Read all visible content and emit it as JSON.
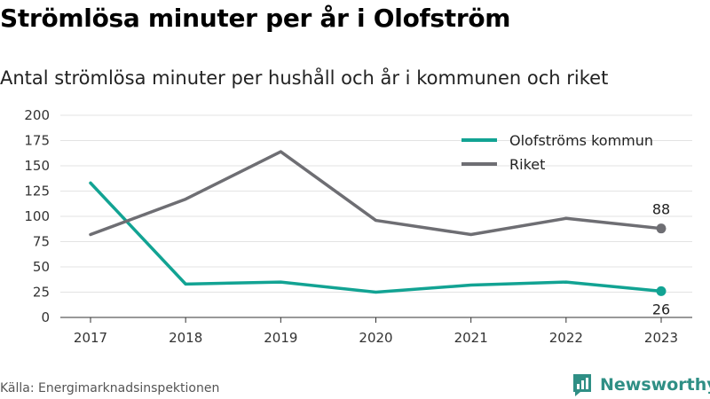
{
  "source": "Källa: Energimarknadsinspektionen",
  "brand": "Newsworthy",
  "colors": {
    "olofstrom": "#12a393",
    "riket": "#6e6e73",
    "brand": "#2f8f85"
  },
  "chart_data": {
    "type": "line",
    "title": "Strömlösa minuter per år i Olofström",
    "subtitle": "Antal strömlösa minuter per hushåll och år i kommunen och riket",
    "x": [
      "2017",
      "2018",
      "2019",
      "2020",
      "2021",
      "2022",
      "2023"
    ],
    "ylim": [
      0,
      200
    ],
    "yticks": [
      "0",
      "25",
      "50",
      "75",
      "100",
      "125",
      "150",
      "175",
      "200"
    ],
    "grid": true,
    "legend_position": "top-right",
    "series": [
      {
        "name": "Olofströms kommun",
        "values": [
          133,
          33,
          35,
          25,
          32,
          35,
          26
        ],
        "end_label": "26",
        "color": "#12a393"
      },
      {
        "name": "Riket",
        "values": [
          82,
          117,
          164,
          96,
          82,
          98,
          88
        ],
        "end_label": "88",
        "color": "#6e6e73"
      }
    ]
  }
}
